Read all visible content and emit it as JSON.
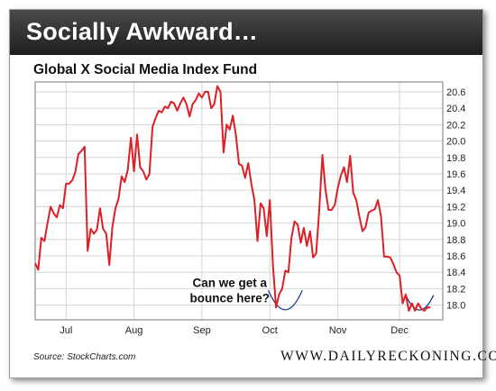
{
  "header": {
    "title": "Socially Awkward…"
  },
  "footer": {
    "source": "Source: StockCharts.com",
    "brand": "WWW.DAILYRECKONING.COM"
  },
  "colors": {
    "line": "#dd1f26",
    "annotation_curve": "#1f3c88",
    "banner": "#2b2b2b"
  },
  "chart_data": {
    "type": "line",
    "title": "Global X Social Media Index Fund",
    "xlabel": "",
    "ylabel": "",
    "x_tick_labels": [
      "Jul",
      "Aug",
      "Sep",
      "Oct",
      "Nov",
      "Dec"
    ],
    "x_tick_positions": [
      10,
      32,
      54,
      76,
      98,
      118
    ],
    "y_ticks": [
      18.0,
      18.2,
      18.4,
      18.6,
      18.8,
      19.0,
      19.2,
      19.4,
      19.6,
      19.8,
      20.0,
      20.2,
      20.4,
      20.6
    ],
    "ylim": [
      17.82,
      20.72
    ],
    "xlim": [
      0,
      132
    ],
    "y_axis_position": "right",
    "grid": true,
    "series": [
      {
        "name": "",
        "x": [
          0,
          1,
          2,
          3,
          4,
          5,
          6,
          7,
          8,
          9,
          10,
          11,
          12,
          13,
          14,
          15,
          16,
          17,
          18,
          19,
          20,
          21,
          22,
          23,
          24,
          25,
          26,
          27,
          28,
          29,
          30,
          31,
          32,
          33,
          34,
          35,
          36,
          37,
          38,
          39,
          40,
          41,
          42,
          43,
          44,
          45,
          46,
          47,
          48,
          49,
          50,
          51,
          52,
          53,
          54,
          55,
          56,
          57,
          58,
          59,
          60,
          61,
          62,
          63,
          64,
          65,
          66,
          67,
          68,
          69,
          70,
          71,
          72,
          73,
          74,
          75,
          76,
          77,
          78,
          79,
          80,
          81,
          82,
          83,
          84,
          85,
          86,
          87,
          88,
          89,
          90,
          91,
          92,
          93,
          94,
          95,
          96,
          97,
          98,
          99,
          100,
          101,
          102,
          103,
          104,
          105,
          106,
          107,
          108,
          109,
          110,
          111,
          112,
          113,
          114,
          115,
          116,
          117,
          118,
          119,
          120,
          121,
          122,
          123,
          124,
          125,
          126,
          127,
          128
        ],
        "y": [
          18.51,
          18.43,
          18.82,
          18.78,
          19.0,
          19.2,
          19.12,
          19.07,
          19.22,
          19.18,
          19.48,
          19.48,
          19.52,
          19.62,
          19.84,
          19.88,
          19.93,
          18.66,
          18.93,
          18.87,
          18.92,
          19.18,
          18.93,
          18.87,
          18.49,
          18.95,
          19.18,
          19.3,
          19.57,
          19.5,
          19.65,
          20.04,
          19.63,
          20.08,
          19.68,
          19.63,
          19.53,
          19.6,
          20.17,
          20.28,
          20.37,
          20.35,
          20.42,
          20.4,
          20.48,
          20.46,
          20.37,
          20.46,
          20.53,
          20.45,
          20.3,
          20.45,
          20.5,
          20.58,
          20.53,
          20.6,
          20.6,
          20.4,
          20.45,
          20.67,
          20.6,
          19.86,
          20.2,
          20.14,
          20.31,
          20.07,
          19.72,
          19.7,
          19.55,
          19.73,
          19.48,
          19.28,
          18.78,
          19.24,
          19.18,
          18.84,
          19.28,
          18.48,
          17.97,
          18.13,
          18.2,
          18.42,
          18.4,
          18.82,
          19.02,
          18.98,
          18.76,
          18.94,
          18.72,
          18.9,
          18.58,
          18.63,
          19.16,
          19.83,
          19.41,
          19.16,
          19.16,
          19.22,
          19.43,
          19.58,
          19.68,
          19.5,
          19.82,
          19.37,
          19.28,
          19.08,
          18.9,
          18.95,
          19.13,
          19.15,
          19.17,
          19.28,
          19.08,
          18.59,
          18.59,
          18.58,
          18.5,
          18.4,
          18.36,
          18.02,
          18.13,
          17.93,
          18.02,
          17.93,
          18.02,
          17.96,
          17.93,
          17.97,
          17.97
        ]
      }
    ],
    "annotations": [
      {
        "text_lines": [
          "Can we get a",
          "bounce here?"
        ]
      }
    ]
  }
}
